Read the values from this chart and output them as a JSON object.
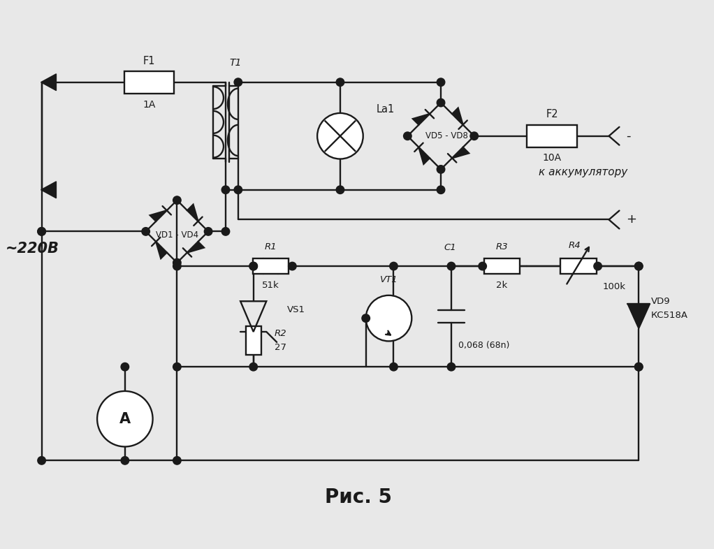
{
  "bg_color": "#e8e8e8",
  "line_color": "#1a1a1a",
  "title": "Рис. 5",
  "title_fontsize": 20,
  "label_220": "~220В",
  "label_f1": "F1",
  "label_f1_val": "1A",
  "label_t1": "T1",
  "label_la1": "La1",
  "label_vd1_vd4": "VD1 - VD4",
  "label_vd5_vd8": "VD5 - VD8",
  "label_f2": "F2",
  "label_f2_val": "10A",
  "label_akkum": "к аккумулятору",
  "label_r1": "R1",
  "label_r1_val": "51k",
  "label_vs1": "VS1",
  "label_vt1": "VT1",
  "label_r2": "R2",
  "label_r2_val": "27",
  "label_r3": "R3",
  "label_r3_val": "2k",
  "label_r4": "R4",
  "label_r4_val": "100k",
  "label_c1": "C1",
  "label_c1_val": "0,068 (68n)",
  "label_vd9": "VD9",
  "label_vd9_val": "КС518А"
}
